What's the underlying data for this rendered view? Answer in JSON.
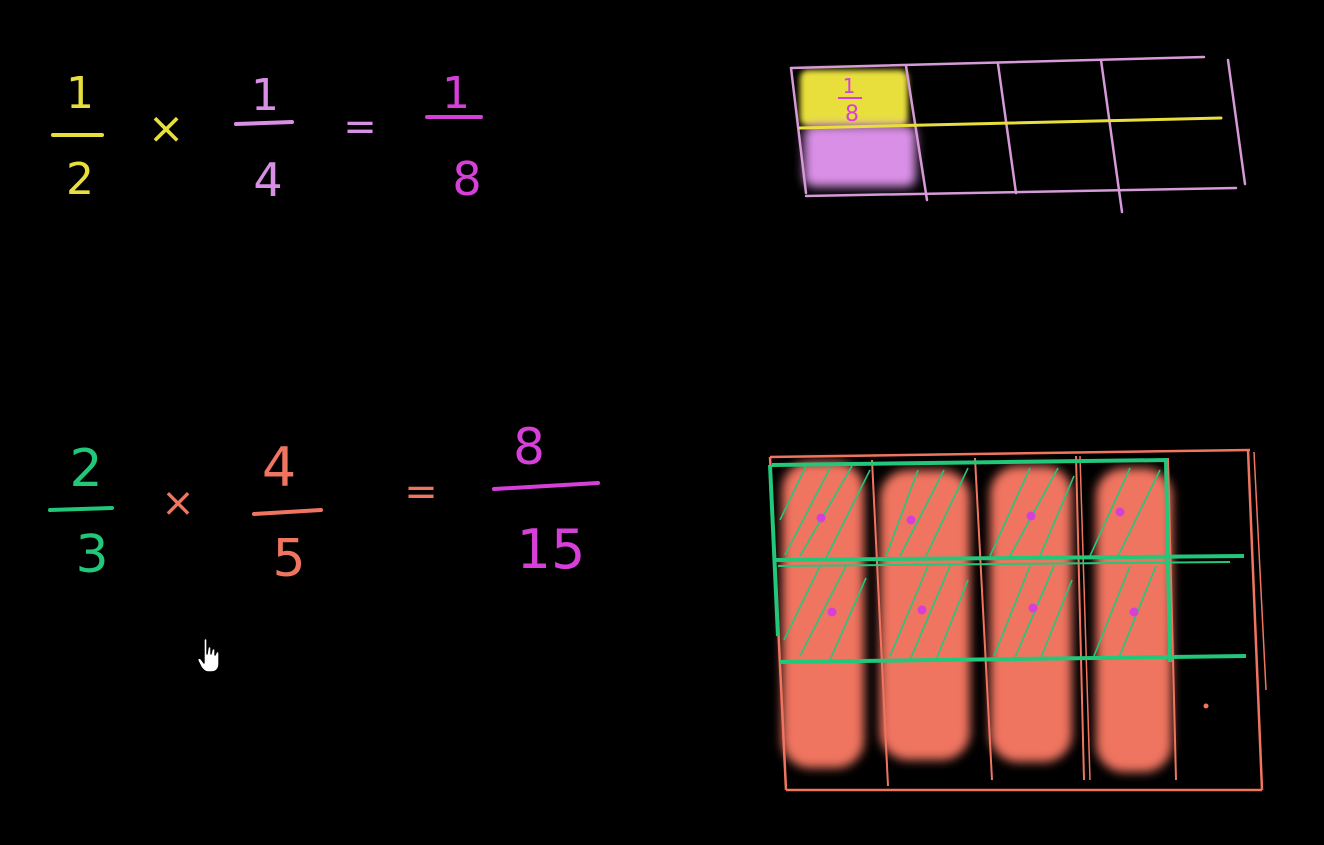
{
  "colors": {
    "background": "#000000",
    "yellow": "#e8df3c",
    "pink": "#d98fe6",
    "magenta": "#d640d8",
    "green": "#22c77a",
    "salmon": "#f07560",
    "grid_pink": "#d79ad8"
  },
  "equation1": {
    "factor1": {
      "numerator": "1",
      "denominator": "2"
    },
    "operator": "×",
    "factor2": {
      "numerator": "1",
      "denominator": "4"
    },
    "equals": "=",
    "result": {
      "numerator": "1",
      "denominator": "8"
    }
  },
  "equation2": {
    "factor1": {
      "numerator": "2",
      "denominator": "3"
    },
    "operator": "×",
    "factor2": {
      "numerator": "4",
      "denominator": "5"
    },
    "equals": "=",
    "result": {
      "numerator": "8",
      "denominator": "15"
    }
  },
  "diagram1": {
    "cell_label": {
      "numerator": "1",
      "denominator": "8"
    }
  },
  "cursor": {
    "icon": "hand-pointer-icon"
  }
}
